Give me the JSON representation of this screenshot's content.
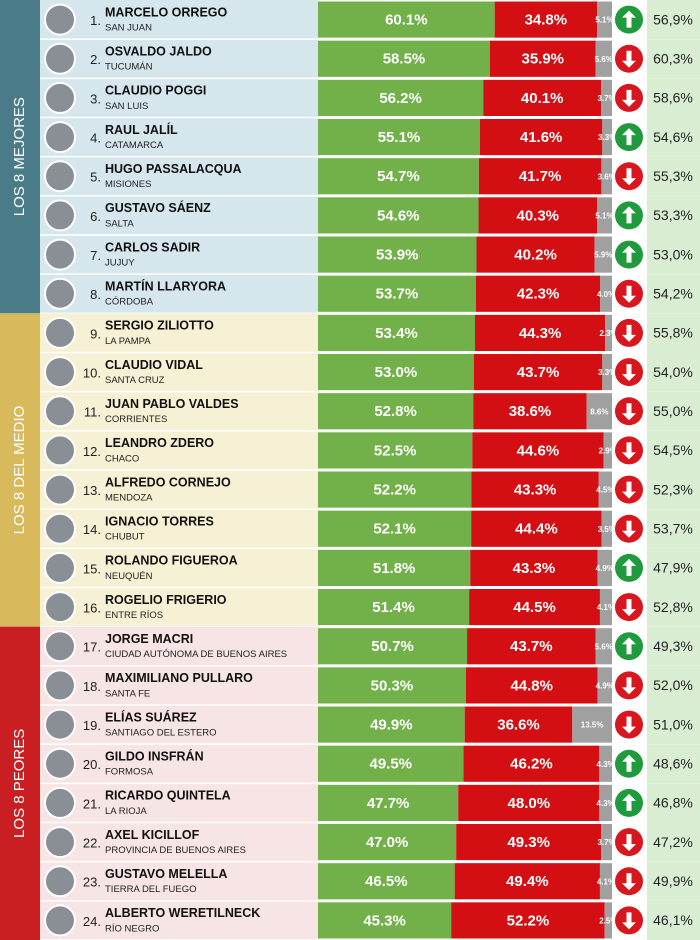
{
  "bar_colors": [
    "#72b14a",
    "#d40f14",
    "#a0a0a0"
  ],
  "trend_colors": {
    "up": "#1f9a3c",
    "down": "#d7161e"
  },
  "previous_bg": "#d9edd3",
  "groups": [
    {
      "label": "LOS 8 MEJORES",
      "band": "#4a7b88",
      "bg": "#d5e6ec",
      "rows": [
        {
          "rank": "1.",
          "name": "MARCELO ORREGO",
          "province": "SAN JUAN",
          "values": [
            60.1,
            34.8,
            5.1
          ],
          "value_labels": [
            "60.1%",
            "34.8%",
            "5.1%"
          ],
          "trend": "up",
          "previous": "56,9%"
        },
        {
          "rank": "2.",
          "name": "OSVALDO JALDO",
          "province": "TUCUMÁN",
          "values": [
            58.5,
            35.9,
            5.6
          ],
          "value_labels": [
            "58.5%",
            "35.9%",
            "5.6%"
          ],
          "trend": "down",
          "previous": "60,3%"
        },
        {
          "rank": "3.",
          "name": "CLAUDIO POGGI",
          "province": "SAN LUIS",
          "values": [
            56.2,
            40.1,
            3.7
          ],
          "value_labels": [
            "56.2%",
            "40.1%",
            "3.7%"
          ],
          "trend": "down",
          "previous": "58,6%"
        },
        {
          "rank": "4.",
          "name": "RAUL JALÍL",
          "province": "CATAMARCA",
          "values": [
            55.1,
            41.6,
            3.3
          ],
          "value_labels": [
            "55.1%",
            "41.6%",
            "3.3%"
          ],
          "trend": "up",
          "previous": "54,6%"
        },
        {
          "rank": "5.",
          "name": "HUGO PASSALACQUA",
          "province": "MISIONES",
          "values": [
            54.7,
            41.7,
            3.6
          ],
          "value_labels": [
            "54.7%",
            "41.7%",
            "3.6%"
          ],
          "trend": "down",
          "previous": "55,3%"
        },
        {
          "rank": "6.",
          "name": "GUSTAVO SÁENZ",
          "province": "SALTA",
          "values": [
            54.6,
            40.3,
            5.1
          ],
          "value_labels": [
            "54.6%",
            "40.3%",
            "5.1%"
          ],
          "trend": "up",
          "previous": "53,3%"
        },
        {
          "rank": "7.",
          "name": "CARLOS SADIR",
          "province": "JUJUY",
          "values": [
            53.9,
            40.2,
            5.9
          ],
          "value_labels": [
            "53.9%",
            "40.2%",
            "5.9%"
          ],
          "trend": "up",
          "previous": "53,0%"
        },
        {
          "rank": "8.",
          "name": "MARTÍN LLARYORA",
          "province": "CÓRDOBA",
          "values": [
            53.7,
            42.3,
            4.0
          ],
          "value_labels": [
            "53.7%",
            "42.3%",
            "4.0%"
          ],
          "trend": "down",
          "previous": "54,2%"
        }
      ]
    },
    {
      "label": "LOS 8 DEL MEDIO",
      "band": "#d8b95c",
      "bg": "#f6f0d4",
      "rows": [
        {
          "rank": "9.",
          "name": "SERGIO ZILIOTTO",
          "province": "LA PAMPA",
          "values": [
            53.4,
            44.3,
            2.3
          ],
          "value_labels": [
            "53.4%",
            "44.3%",
            "2.3%"
          ],
          "trend": "down",
          "previous": "55,8%"
        },
        {
          "rank": "10.",
          "name": "CLAUDIO VIDAL",
          "province": "SANTA CRUZ",
          "values": [
            53.0,
            43.7,
            3.3
          ],
          "value_labels": [
            "53.0%",
            "43.7%",
            "3.3%"
          ],
          "trend": "down",
          "previous": "54,0%"
        },
        {
          "rank": "11.",
          "name": "JUAN PABLO VALDES",
          "province": "CORRIENTES",
          "values": [
            52.8,
            38.6,
            8.6
          ],
          "value_labels": [
            "52.8%",
            "38.6%",
            "8.6%"
          ],
          "trend": "down",
          "previous": "55,0%"
        },
        {
          "rank": "12.",
          "name": "LEANDRO ZDERO",
          "province": "CHACO",
          "values": [
            52.5,
            44.6,
            2.9
          ],
          "value_labels": [
            "52.5%",
            "44.6%",
            "2.9%"
          ],
          "trend": "down",
          "previous": "54,5%"
        },
        {
          "rank": "13.",
          "name": "ALFREDO CORNEJO",
          "province": "MENDOZA",
          "values": [
            52.2,
            43.3,
            4.5
          ],
          "value_labels": [
            "52.2%",
            "43.3%",
            "4.5%"
          ],
          "trend": "down",
          "previous": "52,3%"
        },
        {
          "rank": "14.",
          "name": "IGNACIO TORRES",
          "province": "CHUBUT",
          "values": [
            52.1,
            44.4,
            3.5
          ],
          "value_labels": [
            "52.1%",
            "44.4%",
            "3.5%"
          ],
          "trend": "down",
          "previous": "53,7%"
        },
        {
          "rank": "15.",
          "name": "ROLANDO FIGUEROA",
          "province": "NEUQUÉN",
          "values": [
            51.8,
            43.3,
            4.9
          ],
          "value_labels": [
            "51.8%",
            "43.3%",
            "4.9%"
          ],
          "trend": "up",
          "previous": "47,9%"
        },
        {
          "rank": "16.",
          "name": "ROGELIO FRIGERIO",
          "province": "ENTRE RÍOS",
          "values": [
            51.4,
            44.5,
            4.1
          ],
          "value_labels": [
            "51.4%",
            "44.5%",
            "4.1%"
          ],
          "trend": "down",
          "previous": "52,8%"
        }
      ]
    },
    {
      "label": "LOS 8 PEORES",
      "band": "#c91f22",
      "bg": "#f7e4e4",
      "rows": [
        {
          "rank": "17.",
          "name": "JORGE MACRI",
          "province": "CIUDAD AUTÓNOMA DE BUENOS AIRES",
          "values": [
            50.7,
            43.7,
            5.6
          ],
          "value_labels": [
            "50.7%",
            "43.7%",
            "5.6%"
          ],
          "trend": "up",
          "previous": "49,3%"
        },
        {
          "rank": "18.",
          "name": "MAXIMILIANO PULLARO",
          "province": "SANTA FE",
          "values": [
            50.3,
            44.8,
            4.9
          ],
          "value_labels": [
            "50.3%",
            "44.8%",
            "4.9%"
          ],
          "trend": "down",
          "previous": "52,0%"
        },
        {
          "rank": "19.",
          "name": "ELÍAS SUÁREZ",
          "province": "SANTIAGO DEL ESTERO",
          "values": [
            49.9,
            36.6,
            13.5
          ],
          "value_labels": [
            "49.9%",
            "36.6%",
            "13.5%"
          ],
          "trend": "down",
          "previous": "51,0%"
        },
        {
          "rank": "20.",
          "name": "GILDO INSFRÁN",
          "province": "FORMOSA",
          "values": [
            49.5,
            46.2,
            4.3
          ],
          "value_labels": [
            "49.5%",
            "46.2%",
            "4.3%"
          ],
          "trend": "up",
          "previous": "48,6%"
        },
        {
          "rank": "21.",
          "name": "RICARDO QUINTELA",
          "province": "LA RIOJA",
          "values": [
            47.7,
            48.0,
            4.3
          ],
          "value_labels": [
            "47.7%",
            "48.0%",
            "4.3%"
          ],
          "trend": "up",
          "previous": "46,8%"
        },
        {
          "rank": "22.",
          "name": "AXEL KICILLOF",
          "province": "PROVINCIA DE BUENOS AIRES",
          "values": [
            47.0,
            49.3,
            3.7
          ],
          "value_labels": [
            "47.0%",
            "49.3%",
            "3.7%"
          ],
          "trend": "down",
          "previous": "47,2%"
        },
        {
          "rank": "23.",
          "name": "GUSTAVO MELELLA",
          "province": "TIERRA DEL FUEGO",
          "values": [
            46.5,
            49.4,
            4.1
          ],
          "value_labels": [
            "46.5%",
            "49.4%",
            "4.1%"
          ],
          "trend": "down",
          "previous": "49,9%"
        },
        {
          "rank": "24.",
          "name": "ALBERTO WERETILNECK",
          "province": "RÍO NEGRO",
          "values": [
            45.3,
            52.2,
            2.5
          ],
          "value_labels": [
            "45.3%",
            "52.2%",
            "2.5%"
          ],
          "trend": "down",
          "previous": "46,1%"
        }
      ]
    }
  ]
}
